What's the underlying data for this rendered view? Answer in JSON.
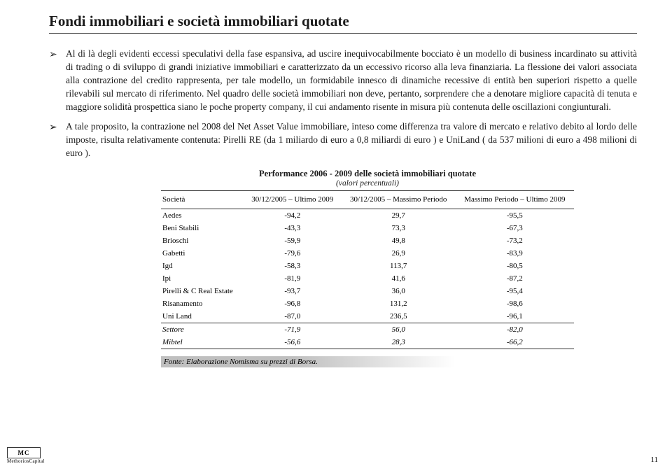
{
  "title": "Fondi immobiliari e società immobiliari quotate",
  "bullets": [
    "Al di là degli evidenti eccessi speculativi della fase espansiva, ad uscire inequivocabilmente bocciato è un modello di business incardinato su attività di trading o di sviluppo di grandi iniziative immobiliari e caratterizzato da un eccessivo ricorso alla leva finanziaria. La flessione dei valori associata alla contrazione del credito rappresenta, per tale modello, un formidabile innesco di dinamiche recessive di entità ben superiori rispetto a quelle rilevabili sul mercato di riferimento. Nel quadro delle società immobiliari non deve, pertanto, sorprendere che a denotare migliore capacità di tenuta e maggiore solidità prospettica siano le poche property company, il cui andamento risente in misura più contenuta delle oscillazioni congiunturali.",
    "A tale proposito, la contrazione nel 2008 del Net Asset Value immobiliare, inteso come differenza tra valore di mercato e relativo debito al lordo delle imposte, risulta relativamente contenuta: Pirelli RE (da 1 miliardo di euro a 0,8 miliardi di euro ) e UniLand ( da 537 milioni di euro a 498 milioni di euro )."
  ],
  "table": {
    "title": "Performance 2006 - 2009 delle società immobiliari quotate",
    "subtitle": "(valori percentuali)",
    "columns": [
      "Società",
      "30/12/2005 – Ultimo 2009",
      "30/12/2005 – Massimo Periodo",
      "Massimo Periodo – Ultimo 2009"
    ],
    "rows": [
      [
        "Aedes",
        "-94,2",
        "29,7",
        "-95,5"
      ],
      [
        "Beni Stabili",
        "-43,3",
        "73,3",
        "-67,3"
      ],
      [
        "Brioschi",
        "-59,9",
        "49,8",
        "-73,2"
      ],
      [
        "Gabetti",
        "-79,6",
        "26,9",
        "-83,9"
      ],
      [
        "Igd",
        "-58,3",
        "113,7",
        "-80,5"
      ],
      [
        "Ipi",
        "-81,9",
        "41,6",
        "-87,2"
      ],
      [
        "Pirelli & C Real Estate",
        "-93,7",
        "36,0",
        "-95,4"
      ],
      [
        "Risanamento",
        "-96,8",
        "131,2",
        "-98,6"
      ],
      [
        "Uni Land",
        "-87,0",
        "236,5",
        "-96,1"
      ]
    ],
    "summary_rows": [
      [
        "Settore",
        "-71,9",
        "56,0",
        "-82,0"
      ],
      [
        "Mibtel",
        "-56,6",
        "28,3",
        "-66,2"
      ]
    ]
  },
  "source": "Fonte: Elaborazione Nomisma su prezzi di Borsa.",
  "logo": {
    "initials": "MC",
    "name": "MethoriosCapital"
  },
  "page_number": "11"
}
